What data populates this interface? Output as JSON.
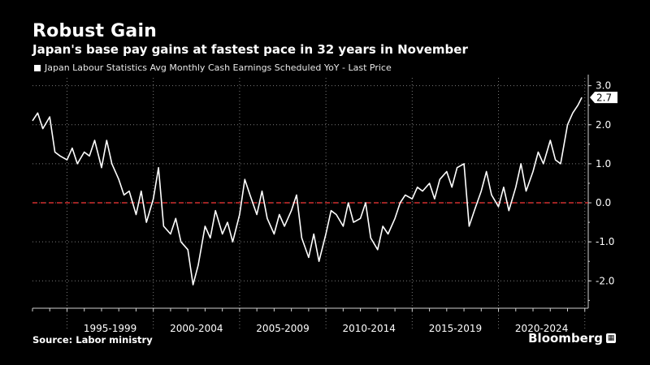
{
  "header": {
    "title": "Robust Gain",
    "subtitle": "Japan's base pay gains at fastest pace in 32 years in November"
  },
  "legend": {
    "label": "Japan Labour Statistics Avg Monthly Cash Earnings Scheduled YoY - Last Price"
  },
  "footer": {
    "source": "Source: Labor ministry",
    "brand": "Bloomberg"
  },
  "colors": {
    "background": "#000000",
    "line": "#ffffff",
    "zero_line": "#d32f2f",
    "grid": "#7a7a7a"
  },
  "chart_data": {
    "type": "line",
    "series": [
      {
        "name": "Japan Labour Statistics Avg Monthly Cash Earnings Scheduled YoY - Last Price",
        "x": [
          1993.0,
          1993.3,
          1993.6,
          1994.0,
          1994.3,
          1994.6,
          1995.0,
          1995.3,
          1995.6,
          1996.0,
          1996.3,
          1996.6,
          1997.0,
          1997.3,
          1997.6,
          1998.0,
          1998.3,
          1998.6,
          1999.0,
          1999.3,
          1999.6,
          2000.0,
          2000.3,
          2000.6,
          2001.0,
          2001.3,
          2001.6,
          2002.0,
          2002.3,
          2002.6,
          2003.0,
          2003.3,
          2003.6,
          2004.0,
          2004.3,
          2004.6,
          2005.0,
          2005.3,
          2005.6,
          2006.0,
          2006.3,
          2006.6,
          2007.0,
          2007.3,
          2007.6,
          2008.0,
          2008.3,
          2008.6,
          2009.0,
          2009.3,
          2009.6,
          2010.0,
          2010.3,
          2010.6,
          2011.0,
          2011.3,
          2011.6,
          2012.0,
          2012.3,
          2012.6,
          2013.0,
          2013.3,
          2013.6,
          2014.0,
          2014.3,
          2014.6,
          2015.0,
          2015.3,
          2015.6,
          2016.0,
          2016.3,
          2016.6,
          2017.0,
          2017.3,
          2017.6,
          2018.0,
          2018.3,
          2018.6,
          2019.0,
          2019.3,
          2019.6,
          2020.0,
          2020.3,
          2020.6,
          2021.0,
          2021.3,
          2021.6,
          2022.0,
          2022.3,
          2022.6,
          2023.0,
          2023.3,
          2023.6,
          2024.0,
          2024.3,
          2024.6,
          2024.83
        ],
        "values": [
          2.1,
          2.3,
          1.9,
          2.2,
          1.3,
          1.2,
          1.1,
          1.4,
          1.0,
          1.3,
          1.2,
          1.6,
          0.9,
          1.6,
          1.0,
          0.6,
          0.2,
          0.3,
          -0.3,
          0.3,
          -0.5,
          0.1,
          0.9,
          -0.6,
          -0.8,
          -0.4,
          -1.0,
          -1.2,
          -2.1,
          -1.6,
          -0.6,
          -0.9,
          -0.2,
          -0.8,
          -0.5,
          -1.0,
          -0.3,
          0.6,
          0.2,
          -0.3,
          0.3,
          -0.4,
          -0.8,
          -0.3,
          -0.6,
          -0.2,
          0.2,
          -0.9,
          -1.4,
          -0.8,
          -1.5,
          -0.8,
          -0.2,
          -0.3,
          -0.6,
          0.0,
          -0.5,
          -0.4,
          0.0,
          -0.9,
          -1.2,
          -0.6,
          -0.8,
          -0.4,
          0.0,
          0.2,
          0.1,
          0.4,
          0.3,
          0.5,
          0.1,
          0.6,
          0.8,
          0.4,
          0.9,
          1.0,
          -0.6,
          -0.2,
          0.3,
          0.8,
          0.2,
          -0.1,
          0.4,
          -0.2,
          0.4,
          1.0,
          0.3,
          0.8,
          1.3,
          1.0,
          1.6,
          1.1,
          1.0,
          2.0,
          2.3,
          2.5,
          2.7
        ]
      }
    ],
    "xlim": [
      1993,
      2025.2
    ],
    "ylim": [
      -2.7,
      3.2
    ],
    "yticks": [
      -2.0,
      -1.0,
      0.0,
      1.0,
      2.0,
      3.0
    ],
    "ytick_labels": [
      "-2.0",
      "-1.0",
      "0.0",
      "1.0",
      "2.0",
      "3.0"
    ],
    "x_period_labels": [
      "1995-1999",
      "2000-2004",
      "2005-2009",
      "2010-2014",
      "2015-2019",
      "2020-2024"
    ],
    "x_period_bounds": [
      1995,
      2000,
      2005,
      2010,
      2015,
      2020,
      2025
    ],
    "reference_line": 0.0,
    "last_value_label": "2.7",
    "last_value": 2.7,
    "grid": true
  }
}
